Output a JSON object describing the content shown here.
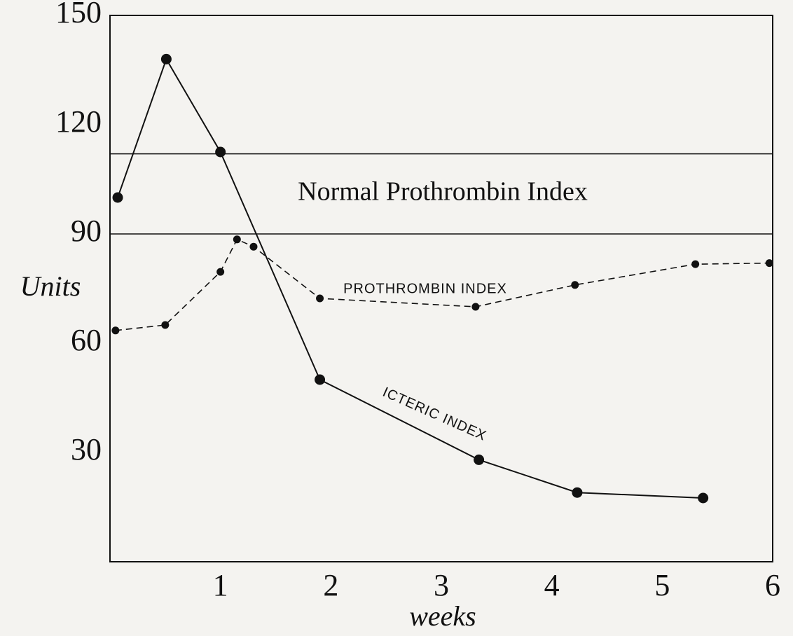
{
  "chart_data": {
    "type": "line",
    "y_label": "Units",
    "x_label": "weeks",
    "xlim": [
      0,
      6
    ],
    "xticks": [
      1,
      2,
      3,
      4,
      5,
      6
    ],
    "ylim": [
      0,
      150
    ],
    "yticks": [
      30,
      60,
      90,
      120,
      150
    ],
    "normal_range": {
      "label": "Normal Prothrombin Index",
      "values": [
        90,
        112
      ]
    },
    "series": [
      {
        "name": "ICTERIC INDEX",
        "color": "#111111",
        "dash": false,
        "x": [
          0.07,
          0.51,
          1.0,
          1.9,
          3.34,
          4.23,
          5.37
        ],
        "values": [
          100,
          138,
          112.5,
          50,
          28,
          19,
          17.5
        ]
      },
      {
        "name": "PROTHROMBIN INDEX",
        "color": "#111111",
        "dash": true,
        "x": [
          0.05,
          0.5,
          1.0,
          1.15,
          1.3,
          1.9,
          3.31,
          4.21,
          5.3,
          5.97
        ],
        "values": [
          63.5,
          65,
          79.6,
          88.5,
          86.5,
          72.3,
          70,
          76,
          81.7,
          82
        ]
      }
    ]
  }
}
